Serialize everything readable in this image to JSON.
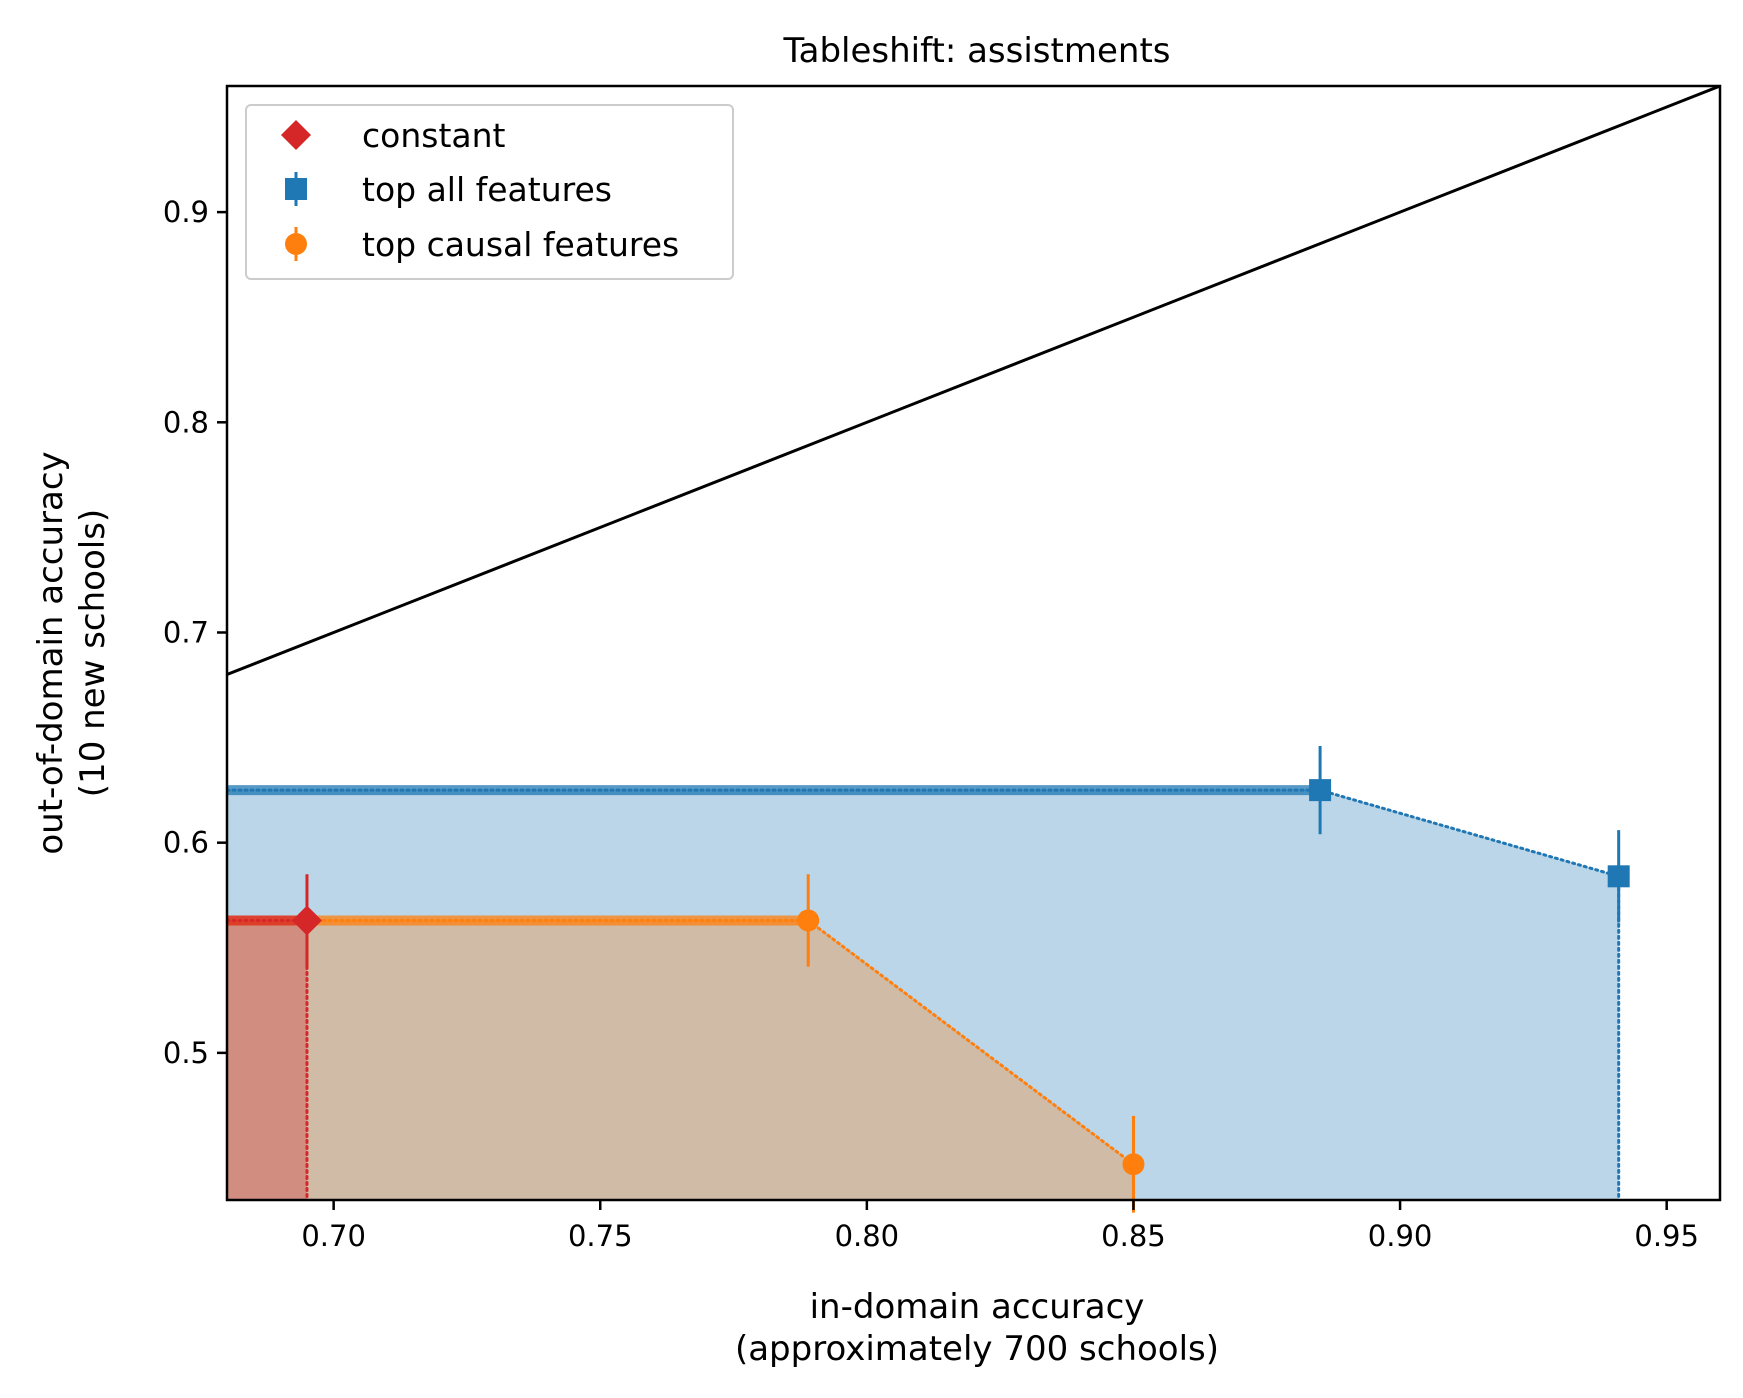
{
  "chart_data": {
    "type": "scatter",
    "title": "Tableshift: assistments",
    "xlabel_lines": [
      "in-domain accuracy",
      "(approximately 700 schools)"
    ],
    "ylabel_lines": [
      "out-of-domain accuracy",
      "(10 new schools)"
    ],
    "xlim": [
      0.68,
      0.96
    ],
    "ylim": [
      0.43,
      0.96
    ],
    "xticks": [
      0.7,
      0.75,
      0.8,
      0.85,
      0.9,
      0.95
    ],
    "xtick_labels": [
      "0.70",
      "0.75",
      "0.80",
      "0.85",
      "0.90",
      "0.95"
    ],
    "yticks": [
      0.5,
      0.6,
      0.7,
      0.8,
      0.9
    ],
    "ytick_labels": [
      "0.5",
      "0.6",
      "0.7",
      "0.8",
      "0.9"
    ],
    "grid": false,
    "legend_position": "top-left",
    "diagonal_line": {
      "from": [
        0.68,
        0.68
      ],
      "to": [
        0.96,
        0.96
      ],
      "color": "#000000"
    },
    "series": [
      {
        "name": "constant",
        "marker": "diamond",
        "color": "#d62728",
        "fill": "#d62728",
        "points": [
          {
            "x": 0.695,
            "y": 0.563,
            "yerr": 0.022
          }
        ]
      },
      {
        "name": "top all features",
        "marker": "square",
        "color": "#1f77b4",
        "fill": "#1f77b4",
        "points": [
          {
            "x": 0.885,
            "y": 0.625,
            "yerr": 0.021
          },
          {
            "x": 0.941,
            "y": 0.584,
            "yerr": 0.022
          }
        ]
      },
      {
        "name": "top causal features",
        "marker": "circle",
        "color": "#ff7f0e",
        "fill": "#ff7f0e",
        "points": [
          {
            "x": 0.789,
            "y": 0.563,
            "yerr": 0.022
          },
          {
            "x": 0.85,
            "y": 0.447,
            "yerr": 0.023
          }
        ]
      }
    ]
  }
}
